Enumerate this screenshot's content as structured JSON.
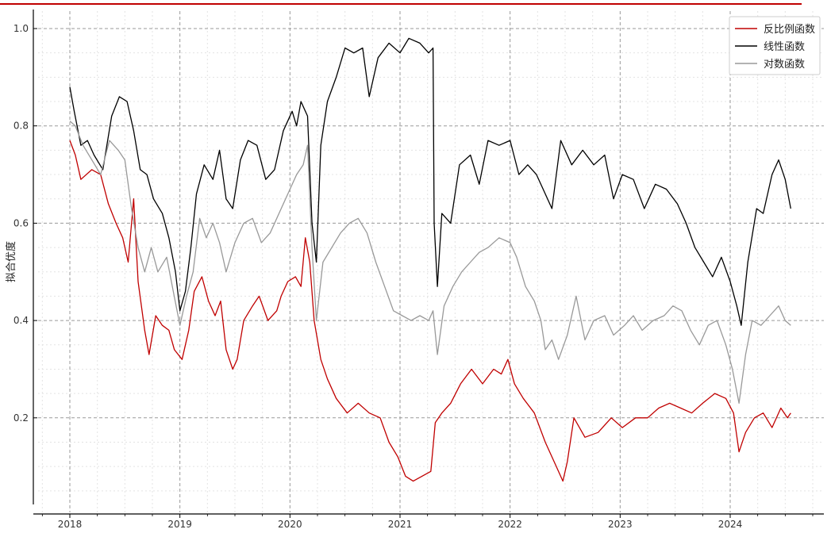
{
  "chart_data": {
    "type": "line",
    "title": "",
    "xlabel": "",
    "ylabel": "拟合优度",
    "x_ticks": [
      "2018",
      "2019",
      "2020",
      "2021",
      "2022",
      "2023",
      "2024"
    ],
    "y_ticks": [
      "0.2",
      "0.4",
      "0.6",
      "0.8",
      "1.0"
    ],
    "xlim": [
      2017.82,
      2024.8
    ],
    "ylim": [
      0.0,
      1.05
    ],
    "grid": true,
    "legend_position": "top-right",
    "series": [
      {
        "name": "反比例函数",
        "color": "#c00000",
        "points": [
          [
            2018.0,
            0.77
          ],
          [
            2018.05,
            0.74
          ],
          [
            2018.1,
            0.69
          ],
          [
            2018.2,
            0.71
          ],
          [
            2018.28,
            0.7
          ],
          [
            2018.35,
            0.64
          ],
          [
            2018.42,
            0.6
          ],
          [
            2018.48,
            0.57
          ],
          [
            2018.53,
            0.52
          ],
          [
            2018.58,
            0.65
          ],
          [
            2018.62,
            0.48
          ],
          [
            2018.68,
            0.38
          ],
          [
            2018.72,
            0.33
          ],
          [
            2018.78,
            0.41
          ],
          [
            2018.84,
            0.39
          ],
          [
            2018.9,
            0.38
          ],
          [
            2018.95,
            0.34
          ],
          [
            2019.02,
            0.32
          ],
          [
            2019.08,
            0.38
          ],
          [
            2019.13,
            0.46
          ],
          [
            2019.2,
            0.49
          ],
          [
            2019.26,
            0.44
          ],
          [
            2019.32,
            0.41
          ],
          [
            2019.37,
            0.44
          ],
          [
            2019.42,
            0.34
          ],
          [
            2019.48,
            0.3
          ],
          [
            2019.52,
            0.32
          ],
          [
            2019.58,
            0.4
          ],
          [
            2019.66,
            0.43
          ],
          [
            2019.72,
            0.45
          ],
          [
            2019.8,
            0.4
          ],
          [
            2019.88,
            0.42
          ],
          [
            2019.92,
            0.45
          ],
          [
            2019.98,
            0.48
          ],
          [
            2020.05,
            0.49
          ],
          [
            2020.1,
            0.47
          ],
          [
            2020.14,
            0.57
          ],
          [
            2020.18,
            0.52
          ],
          [
            2020.22,
            0.4
          ],
          [
            2020.28,
            0.32
          ],
          [
            2020.34,
            0.28
          ],
          [
            2020.42,
            0.24
          ],
          [
            2020.52,
            0.21
          ],
          [
            2020.62,
            0.23
          ],
          [
            2020.72,
            0.21
          ],
          [
            2020.82,
            0.2
          ],
          [
            2020.9,
            0.15
          ],
          [
            2020.98,
            0.12
          ],
          [
            2021.05,
            0.08
          ],
          [
            2021.12,
            0.07
          ],
          [
            2021.2,
            0.08
          ],
          [
            2021.28,
            0.09
          ],
          [
            2021.32,
            0.19
          ],
          [
            2021.38,
            0.21
          ],
          [
            2021.46,
            0.23
          ],
          [
            2021.55,
            0.27
          ],
          [
            2021.65,
            0.3
          ],
          [
            2021.75,
            0.27
          ],
          [
            2021.85,
            0.3
          ],
          [
            2021.92,
            0.29
          ],
          [
            2021.98,
            0.32
          ],
          [
            2022.04,
            0.27
          ],
          [
            2022.12,
            0.24
          ],
          [
            2022.22,
            0.21
          ],
          [
            2022.32,
            0.15
          ],
          [
            2022.42,
            0.1
          ],
          [
            2022.48,
            0.07
          ],
          [
            2022.52,
            0.11
          ],
          [
            2022.58,
            0.2
          ],
          [
            2022.68,
            0.16
          ],
          [
            2022.8,
            0.17
          ],
          [
            2022.92,
            0.2
          ],
          [
            2023.02,
            0.18
          ],
          [
            2023.14,
            0.2
          ],
          [
            2023.25,
            0.2
          ],
          [
            2023.35,
            0.22
          ],
          [
            2023.45,
            0.23
          ],
          [
            2023.55,
            0.22
          ],
          [
            2023.65,
            0.21
          ],
          [
            2023.75,
            0.23
          ],
          [
            2023.86,
            0.25
          ],
          [
            2023.96,
            0.24
          ],
          [
            2024.03,
            0.21
          ],
          [
            2024.08,
            0.13
          ],
          [
            2024.14,
            0.17
          ],
          [
            2024.22,
            0.2
          ],
          [
            2024.3,
            0.21
          ],
          [
            2024.38,
            0.18
          ],
          [
            2024.46,
            0.22
          ],
          [
            2024.52,
            0.2
          ],
          [
            2024.55,
            0.21
          ]
        ]
      },
      {
        "name": "线性函数",
        "color": "#000000",
        "points": [
          [
            2018.0,
            0.88
          ],
          [
            2018.04,
            0.83
          ],
          [
            2018.1,
            0.76
          ],
          [
            2018.16,
            0.77
          ],
          [
            2018.22,
            0.74
          ],
          [
            2018.3,
            0.71
          ],
          [
            2018.38,
            0.82
          ],
          [
            2018.45,
            0.86
          ],
          [
            2018.52,
            0.85
          ],
          [
            2018.58,
            0.79
          ],
          [
            2018.64,
            0.71
          ],
          [
            2018.7,
            0.7
          ],
          [
            2018.76,
            0.65
          ],
          [
            2018.84,
            0.62
          ],
          [
            2018.9,
            0.57
          ],
          [
            2018.96,
            0.5
          ],
          [
            2019.0,
            0.42
          ],
          [
            2019.05,
            0.46
          ],
          [
            2019.1,
            0.55
          ],
          [
            2019.15,
            0.66
          ],
          [
            2019.22,
            0.72
          ],
          [
            2019.3,
            0.69
          ],
          [
            2019.36,
            0.75
          ],
          [
            2019.42,
            0.65
          ],
          [
            2019.48,
            0.63
          ],
          [
            2019.55,
            0.73
          ],
          [
            2019.62,
            0.77
          ],
          [
            2019.7,
            0.76
          ],
          [
            2019.78,
            0.69
          ],
          [
            2019.86,
            0.71
          ],
          [
            2019.94,
            0.79
          ],
          [
            2020.02,
            0.83
          ],
          [
            2020.06,
            0.8
          ],
          [
            2020.1,
            0.85
          ],
          [
            2020.16,
            0.82
          ],
          [
            2020.2,
            0.6
          ],
          [
            2020.24,
            0.52
          ],
          [
            2020.28,
            0.76
          ],
          [
            2020.34,
            0.85
          ],
          [
            2020.42,
            0.9
          ],
          [
            2020.5,
            0.96
          ],
          [
            2020.58,
            0.95
          ],
          [
            2020.66,
            0.96
          ],
          [
            2020.72,
            0.86
          ],
          [
            2020.8,
            0.94
          ],
          [
            2020.9,
            0.97
          ],
          [
            2021.0,
            0.95
          ],
          [
            2021.08,
            0.98
          ],
          [
            2021.18,
            0.97
          ],
          [
            2021.26,
            0.95
          ],
          [
            2021.3,
            0.96
          ],
          [
            2021.31,
            0.6
          ],
          [
            2021.34,
            0.47
          ],
          [
            2021.38,
            0.62
          ],
          [
            2021.46,
            0.6
          ],
          [
            2021.54,
            0.72
          ],
          [
            2021.64,
            0.74
          ],
          [
            2021.72,
            0.68
          ],
          [
            2021.8,
            0.77
          ],
          [
            2021.9,
            0.76
          ],
          [
            2022.0,
            0.77
          ],
          [
            2022.08,
            0.7
          ],
          [
            2022.16,
            0.72
          ],
          [
            2022.24,
            0.7
          ],
          [
            2022.3,
            0.67
          ],
          [
            2022.38,
            0.63
          ],
          [
            2022.46,
            0.77
          ],
          [
            2022.56,
            0.72
          ],
          [
            2022.66,
            0.75
          ],
          [
            2022.76,
            0.72
          ],
          [
            2022.86,
            0.74
          ],
          [
            2022.94,
            0.65
          ],
          [
            2023.02,
            0.7
          ],
          [
            2023.12,
            0.69
          ],
          [
            2023.22,
            0.63
          ],
          [
            2023.32,
            0.68
          ],
          [
            2023.42,
            0.67
          ],
          [
            2023.52,
            0.64
          ],
          [
            2023.6,
            0.6
          ],
          [
            2023.68,
            0.55
          ],
          [
            2023.76,
            0.52
          ],
          [
            2023.84,
            0.49
          ],
          [
            2023.92,
            0.53
          ],
          [
            2024.0,
            0.48
          ],
          [
            2024.06,
            0.43
          ],
          [
            2024.1,
            0.39
          ],
          [
            2024.16,
            0.52
          ],
          [
            2024.24,
            0.63
          ],
          [
            2024.3,
            0.62
          ],
          [
            2024.38,
            0.7
          ],
          [
            2024.44,
            0.73
          ],
          [
            2024.5,
            0.69
          ],
          [
            2024.55,
            0.63
          ]
        ]
      },
      {
        "name": "对数函数",
        "color": "#999999",
        "points": [
          [
            2018.0,
            0.81
          ],
          [
            2018.05,
            0.8
          ],
          [
            2018.12,
            0.76
          ],
          [
            2018.2,
            0.73
          ],
          [
            2018.28,
            0.7
          ],
          [
            2018.36,
            0.77
          ],
          [
            2018.44,
            0.75
          ],
          [
            2018.5,
            0.73
          ],
          [
            2018.56,
            0.63
          ],
          [
            2018.62,
            0.55
          ],
          [
            2018.68,
            0.5
          ],
          [
            2018.74,
            0.55
          ],
          [
            2018.8,
            0.5
          ],
          [
            2018.88,
            0.53
          ],
          [
            2018.94,
            0.46
          ],
          [
            2019.0,
            0.39
          ],
          [
            2019.06,
            0.45
          ],
          [
            2019.12,
            0.5
          ],
          [
            2019.18,
            0.61
          ],
          [
            2019.24,
            0.57
          ],
          [
            2019.3,
            0.6
          ],
          [
            2019.36,
            0.56
          ],
          [
            2019.42,
            0.5
          ],
          [
            2019.5,
            0.56
          ],
          [
            2019.58,
            0.6
          ],
          [
            2019.66,
            0.61
          ],
          [
            2019.74,
            0.56
          ],
          [
            2019.82,
            0.58
          ],
          [
            2019.9,
            0.62
          ],
          [
            2019.98,
            0.66
          ],
          [
            2020.06,
            0.7
          ],
          [
            2020.12,
            0.72
          ],
          [
            2020.16,
            0.76
          ],
          [
            2020.2,
            0.55
          ],
          [
            2020.24,
            0.4
          ],
          [
            2020.3,
            0.52
          ],
          [
            2020.38,
            0.55
          ],
          [
            2020.46,
            0.58
          ],
          [
            2020.54,
            0.6
          ],
          [
            2020.62,
            0.61
          ],
          [
            2020.7,
            0.58
          ],
          [
            2020.78,
            0.52
          ],
          [
            2020.86,
            0.47
          ],
          [
            2020.94,
            0.42
          ],
          [
            2021.02,
            0.41
          ],
          [
            2021.1,
            0.4
          ],
          [
            2021.18,
            0.41
          ],
          [
            2021.26,
            0.4
          ],
          [
            2021.3,
            0.42
          ],
          [
            2021.34,
            0.33
          ],
          [
            2021.4,
            0.43
          ],
          [
            2021.48,
            0.47
          ],
          [
            2021.56,
            0.5
          ],
          [
            2021.64,
            0.52
          ],
          [
            2021.72,
            0.54
          ],
          [
            2021.8,
            0.55
          ],
          [
            2021.9,
            0.57
          ],
          [
            2022.0,
            0.56
          ],
          [
            2022.06,
            0.53
          ],
          [
            2022.14,
            0.47
          ],
          [
            2022.22,
            0.44
          ],
          [
            2022.28,
            0.4
          ],
          [
            2022.32,
            0.34
          ],
          [
            2022.38,
            0.36
          ],
          [
            2022.44,
            0.32
          ],
          [
            2022.52,
            0.37
          ],
          [
            2022.6,
            0.45
          ],
          [
            2022.68,
            0.36
          ],
          [
            2022.76,
            0.4
          ],
          [
            2022.86,
            0.41
          ],
          [
            2022.94,
            0.37
          ],
          [
            2023.04,
            0.39
          ],
          [
            2023.12,
            0.41
          ],
          [
            2023.2,
            0.38
          ],
          [
            2023.3,
            0.4
          ],
          [
            2023.4,
            0.41
          ],
          [
            2023.48,
            0.43
          ],
          [
            2023.56,
            0.42
          ],
          [
            2023.64,
            0.38
          ],
          [
            2023.72,
            0.35
          ],
          [
            2023.8,
            0.39
          ],
          [
            2023.88,
            0.4
          ],
          [
            2023.96,
            0.35
          ],
          [
            2024.02,
            0.3
          ],
          [
            2024.08,
            0.23
          ],
          [
            2024.14,
            0.33
          ],
          [
            2024.2,
            0.4
          ],
          [
            2024.28,
            0.39
          ],
          [
            2024.36,
            0.41
          ],
          [
            2024.44,
            0.43
          ],
          [
            2024.5,
            0.4
          ],
          [
            2024.55,
            0.39
          ]
        ]
      }
    ]
  }
}
